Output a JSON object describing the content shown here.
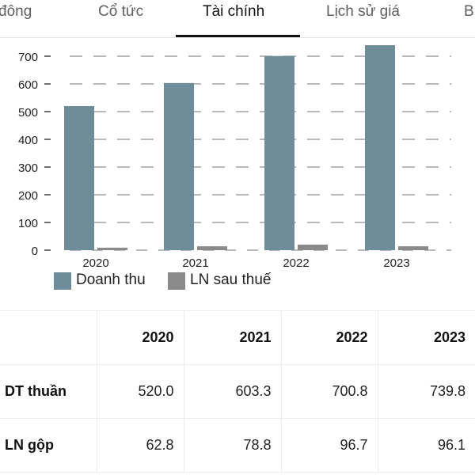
{
  "tabs": [
    {
      "label": "đông"
    },
    {
      "label": "Cổ tức"
    },
    {
      "label": "Tài chính"
    },
    {
      "label": "Lịch sử giá"
    },
    {
      "label": "B"
    }
  ],
  "colors": {
    "revenue": "#6f8c9a",
    "profit": "#8a8a8a"
  },
  "chart_data": {
    "type": "bar",
    "categories": [
      "2020",
      "2021",
      "2022",
      "2023"
    ],
    "series": [
      {
        "name": "Doanh thu",
        "values": [
          520.0,
          603.3,
          700.8,
          739.8
        ]
      },
      {
        "name": "LN sau thuế",
        "values": [
          9,
          14,
          20,
          14
        ]
      }
    ],
    "yticks": [
      0,
      100,
      200,
      300,
      400,
      500,
      600,
      700
    ],
    "ylim": [
      0,
      750
    ],
    "grid": true,
    "legend": "bottom-left"
  },
  "table": {
    "headers": [
      "",
      "2020",
      "2021",
      "2022",
      "2023"
    ],
    "rows": [
      {
        "label": "DT thuần",
        "values": [
          "520.0",
          "603.3",
          "700.8",
          "739.8"
        ]
      },
      {
        "label": "LN gộp",
        "values": [
          "62.8",
          "78.8",
          "96.7",
          "96.1"
        ]
      }
    ]
  }
}
